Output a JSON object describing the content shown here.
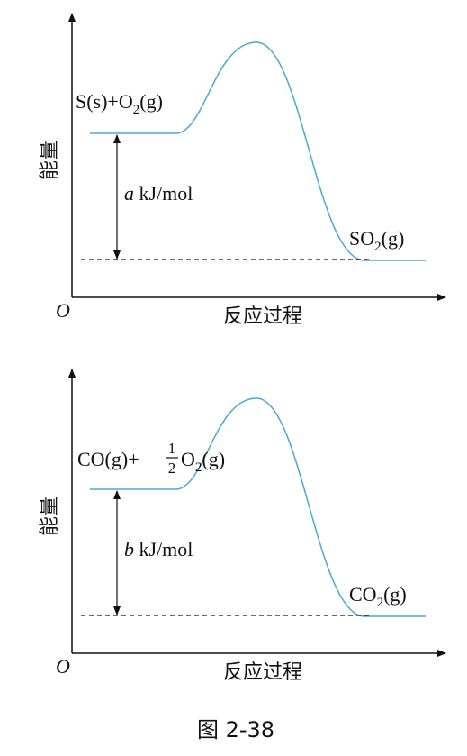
{
  "diagrams": [
    {
      "y_axis_label": "能量",
      "origin": "O",
      "x_axis_label": "反应过程",
      "reactants": {
        "before": "S(s)+O",
        "subscript": "2",
        "after": "(g)"
      },
      "energy_change": {
        "symbol": "a",
        "unit": " kJ/mol"
      },
      "products": {
        "before": "SO",
        "subscript": "2",
        "after": "(g)"
      }
    },
    {
      "y_axis_label": "能量",
      "origin": "O",
      "x_axis_label": "反应过程",
      "reactants": {
        "before": "CO(g)+",
        "numerator": "1",
        "denominator": "2",
        "species": "O",
        "subscript": "2",
        "after": "(g)"
      },
      "energy_change": {
        "symbol": "b",
        "unit": " kJ/mol"
      },
      "products": {
        "before": "CO",
        "subscript": "2",
        "after": "(g)"
      }
    }
  ],
  "caption": "图 2-38"
}
